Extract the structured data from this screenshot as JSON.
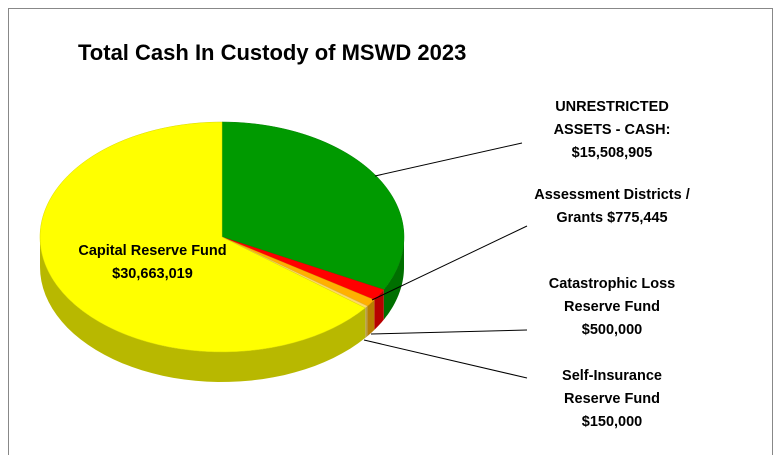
{
  "chart_data": {
    "type": "pie3d",
    "title": "Total Cash In Custody of MSWD 2023",
    "categories": [
      "UNRESTRICTED ASSETS - CASH:",
      "Assessment Districts / Grants",
      "Catastrophic Loss Reserve Fund",
      "Self-Insurance Reserve Fund",
      "Capital Reserve Fund"
    ],
    "values": [
      15508905,
      775445,
      500000,
      150000,
      30663019
    ],
    "value_labels": [
      "$15,508,905",
      "$775,445",
      "$500,000",
      "$150,000",
      "$30,663,019"
    ],
    "colors": [
      "#009a00",
      "#ff0000",
      "#ffb000",
      "#ffd966",
      "#ffff00"
    ]
  }
}
